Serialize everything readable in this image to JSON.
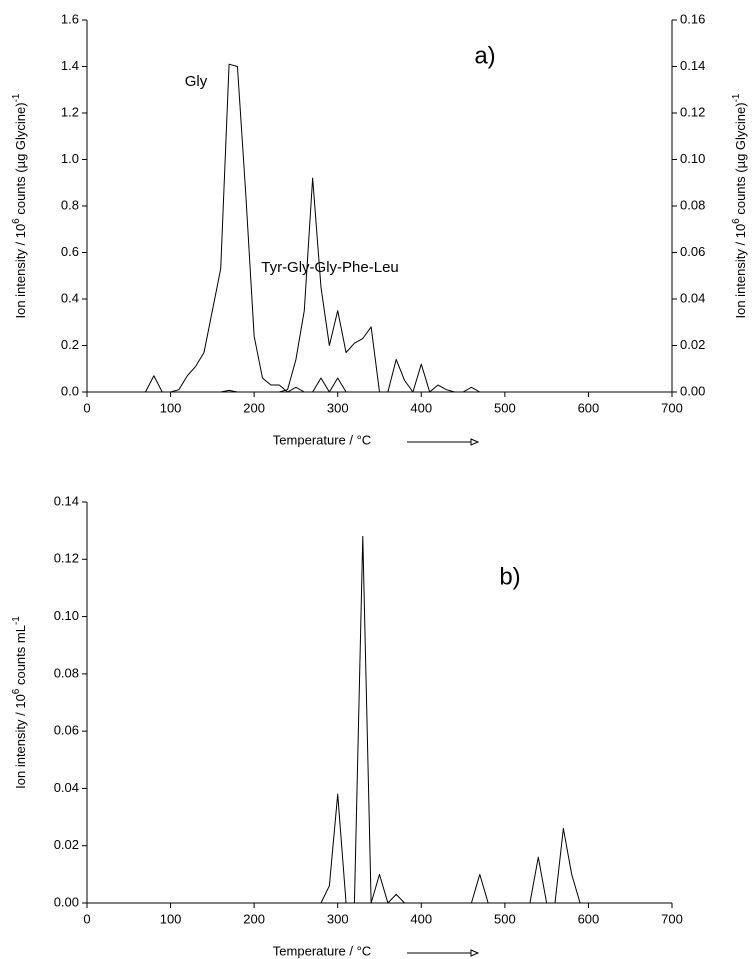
{
  "chart_data": [
    {
      "type": "line",
      "annotations": [
        "a)"
      ],
      "xlabel": "Temperature / °C",
      "ylabel": [
        "Ion intensity / 10",
        "6",
        " counts (µg Glycine)",
        "-1"
      ],
      "y2label": [
        "Ion intensity / 10",
        "6",
        " counts (µg Glycine)",
        "-1"
      ],
      "x": [
        70,
        80,
        90,
        100,
        110,
        120,
        130,
        140,
        150,
        160,
        170,
        180,
        190,
        200,
        210,
        220,
        230,
        240,
        250,
        260,
        270,
        280,
        290,
        300,
        310,
        320,
        330,
        340,
        350,
        360,
        370,
        380,
        390,
        400,
        410,
        420,
        430,
        440,
        450,
        460,
        470
      ],
      "series": [
        {
          "name": "Gly",
          "color": "#000000",
          "values": [
            0,
            0.07,
            0,
            0,
            0.01,
            0.07,
            0.11,
            0.17,
            0.35,
            0.53,
            1.41,
            1.4,
            0.85,
            0.24,
            0.06,
            0.03,
            0.03,
            0,
            0.02,
            0,
            0,
            0.06,
            0,
            0.06,
            0,
            0,
            0,
            0,
            0,
            0,
            0,
            0,
            0,
            0,
            0,
            0,
            0,
            0,
            0,
            0,
            0
          ]
        },
        {
          "name": "Tyr-Gly-Gly-Phe-Leu",
          "color": "#000000",
          "axis": "y2",
          "values": [
            0,
            0,
            0,
            0,
            0,
            0,
            0,
            0,
            0,
            0,
            0.0007,
            0,
            0,
            0,
            0,
            0,
            0,
            0.001,
            0.014,
            0.035,
            0.092,
            0.045,
            0.02,
            0.035,
            0.017,
            0.021,
            0.023,
            0.028,
            0,
            0,
            0.014,
            0.005,
            0,
            0.012,
            0,
            0.003,
            0.001,
            0,
            0,
            0.002,
            0
          ]
        }
      ],
      "xlim": [
        0,
        700
      ],
      "xticks": [
        0,
        100,
        200,
        300,
        400,
        500,
        600,
        700
      ],
      "ylim": [
        0,
        1.6
      ],
      "yticks": [
        {
          "value": 0,
          "label": "0.0"
        },
        {
          "value": 0.2,
          "label": "0.2"
        },
        {
          "value": 0.4,
          "label": "0.4"
        },
        {
          "value": 0.6,
          "label": "0.6"
        },
        {
          "value": 0.8,
          "label": "0.8"
        },
        {
          "value": 1,
          "label": "1.0"
        },
        {
          "value": 1.2,
          "label": "1.2"
        },
        {
          "value": 1.4,
          "label": "1.4"
        },
        {
          "value": 1.6,
          "label": "1.6"
        }
      ],
      "y2lim": [
        0,
        0.16
      ],
      "y2ticks": [
        {
          "value": 0,
          "label": "0.00"
        },
        {
          "value": 0.02,
          "label": "0.02"
        },
        {
          "value": 0.04,
          "label": "0.04"
        },
        {
          "value": 0.06,
          "label": "0.06"
        },
        {
          "value": 0.08,
          "label": "0.08"
        },
        {
          "value": 0.1,
          "label": "0.10"
        },
        {
          "value": 0.12,
          "label": "0.12"
        },
        {
          "value": 0.14,
          "label": "0.14"
        },
        {
          "value": 0.16,
          "label": "0.16"
        }
      ],
      "grid": false
    },
    {
      "type": "line",
      "annotations": [
        "b)"
      ],
      "xlabel": "Temperature / °C",
      "ylabel": [
        "Ion intensity / 10",
        "6",
        " counts mL",
        "-1"
      ],
      "x": [
        270,
        280,
        290,
        300,
        310,
        320,
        330,
        340,
        350,
        360,
        370,
        380,
        390,
        400,
        410,
        420,
        430,
        440,
        450,
        460,
        470,
        480,
        490,
        500,
        510,
        520,
        530,
        540,
        550,
        560,
        570,
        580,
        590,
        600
      ],
      "series": [
        {
          "color": "#000000",
          "values": [
            0,
            0,
            0.006,
            0.038,
            0,
            0,
            0.128,
            0,
            0.01,
            0,
            0.003,
            0,
            0,
            0,
            0,
            0,
            0,
            0,
            0,
            0,
            0.01,
            0,
            0,
            0,
            0,
            0,
            0,
            0.016,
            0,
            0,
            0.026,
            0.01,
            0,
            0
          ]
        }
      ],
      "xlim": [
        0,
        700
      ],
      "xticks": [
        0,
        100,
        200,
        300,
        400,
        500,
        600,
        700
      ],
      "ylim": [
        0,
        0.14
      ],
      "yticks": [
        {
          "value": 0,
          "label": "0.00"
        },
        {
          "value": 0.02,
          "label": "0.02"
        },
        {
          "value": 0.04,
          "label": "0.04"
        },
        {
          "value": 0.06,
          "label": "0.06"
        },
        {
          "value": 0.08,
          "label": "0.08"
        },
        {
          "value": 0.1,
          "label": "0.10"
        },
        {
          "value": 0.12,
          "label": "0.12"
        },
        {
          "value": 0.14,
          "label": "0.14"
        }
      ],
      "grid": false
    }
  ]
}
